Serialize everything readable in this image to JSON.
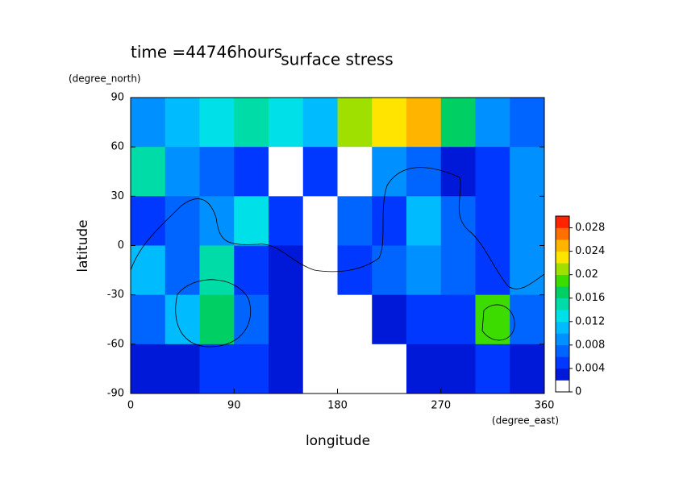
{
  "chart_data": {
    "type": "contour",
    "time_label": "time =44746hours",
    "title": "surface stress",
    "y_unit": "(degree_north)",
    "y_label": "latitude",
    "x_label": "longitude",
    "x_unit": "(degree_east)",
    "x": [
      15,
      45,
      75,
      105,
      135,
      165,
      195,
      225,
      255,
      285,
      315,
      345
    ],
    "y": [
      75,
      45,
      15,
      -15,
      -45,
      -75
    ],
    "z": [
      [
        0.008,
        0.01,
        0.012,
        0.014,
        0.012,
        0.01,
        0.02,
        0.022,
        0.024,
        0.016,
        0.008,
        0.006
      ],
      [
        0.014,
        0.008,
        0.006,
        0.004,
        0.001,
        0.004,
        0.001,
        0.008,
        0.006,
        0.003,
        0.004,
        0.008
      ],
      [
        0.004,
        0.006,
        0.008,
        0.012,
        0.004,
        0.001,
        0.006,
        0.004,
        0.01,
        0.006,
        0.004,
        0.008
      ],
      [
        0.01,
        0.006,
        0.014,
        0.004,
        0.003,
        0.001,
        0.004,
        0.006,
        0.008,
        0.006,
        0.004,
        0.008
      ],
      [
        0.006,
        0.01,
        0.016,
        0.006,
        0.003,
        0.001,
        0.001,
        0.002,
        0.004,
        0.004,
        0.018,
        0.006
      ],
      [
        0.003,
        0.003,
        0.004,
        0.004,
        0.003,
        0.001,
        0.001,
        0.001,
        0.002,
        0.003,
        0.004,
        0.002
      ]
    ],
    "xlim": [
      0,
      360
    ],
    "xticks": [
      0,
      90,
      180,
      270,
      360
    ],
    "ylim": [
      -90,
      90
    ],
    "yticks": [
      -90,
      -60,
      -30,
      0,
      30,
      60,
      90
    ],
    "clim": [
      0,
      0.03
    ],
    "cticks": [
      0,
      0.004,
      0.008,
      0.012,
      0.016,
      0.02,
      0.024,
      0.028
    ],
    "level_step": 0.002,
    "colors": [
      "#ffffff",
      "#0018d8",
      "#0038ff",
      "#0064ff",
      "#0090ff",
      "#00bcff",
      "#00e0e8",
      "#00dca8",
      "#00d064",
      "#3cdc00",
      "#a0e000",
      "#ffe400",
      "#ffb400",
      "#ff7000",
      "#ff2400"
    ]
  }
}
